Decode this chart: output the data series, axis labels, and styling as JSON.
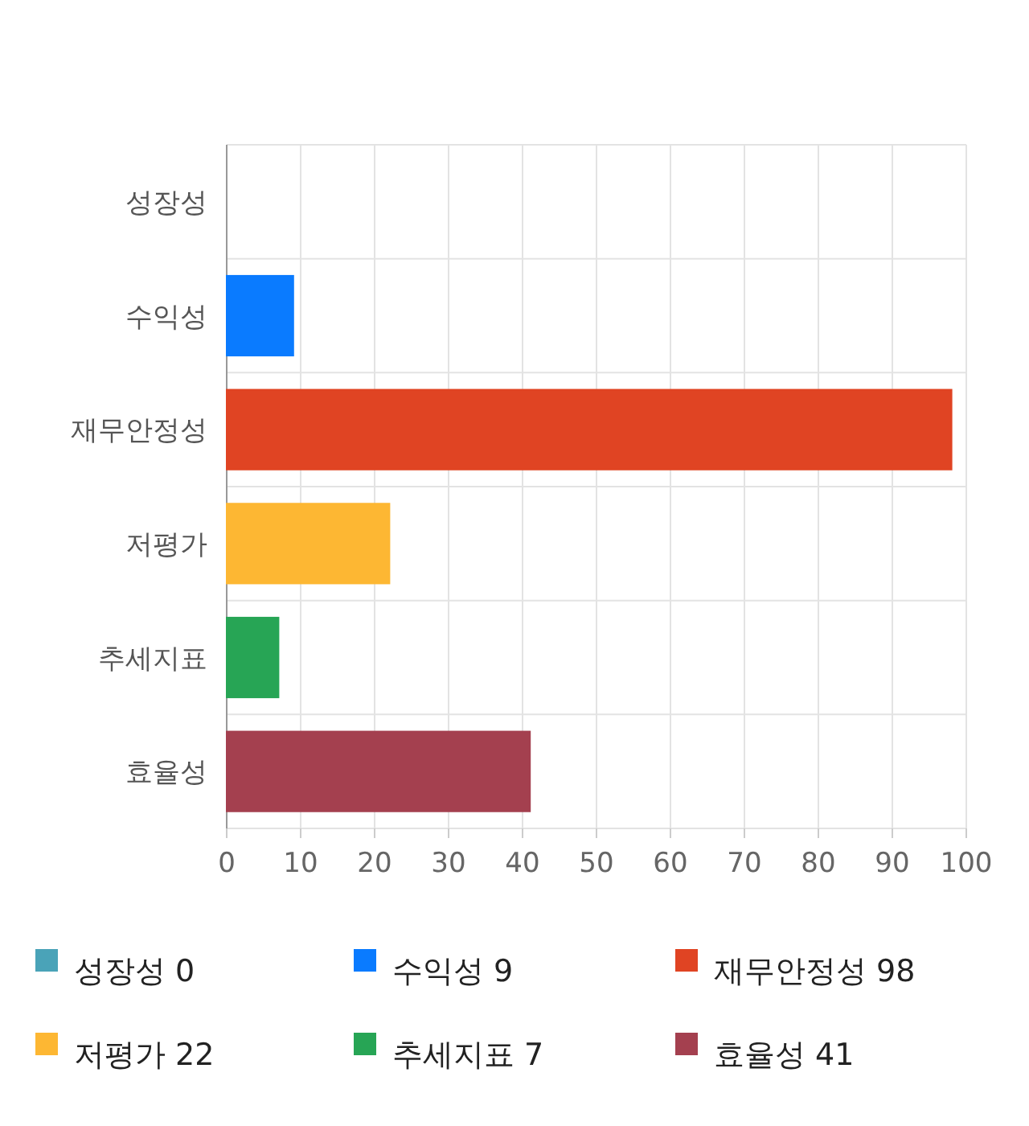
{
  "chart_data": {
    "type": "bar",
    "orientation": "horizontal",
    "stacked": true,
    "categories": [
      "성장성",
      "수익성",
      "재무안정성",
      "저평가",
      "추세지표",
      "효율성"
    ],
    "series": [
      {
        "name": "성장성 0",
        "color": "#4aa3b8",
        "values": [
          0,
          null,
          null,
          null,
          null,
          null
        ]
      },
      {
        "name": "수익성 9",
        "color": "#0a7bff",
        "values": [
          null,
          9,
          null,
          null,
          null,
          null
        ]
      },
      {
        "name": "재무안정성 98",
        "color": "#e04423",
        "values": [
          null,
          null,
          98,
          null,
          null,
          null
        ]
      },
      {
        "name": "저평가 22",
        "color": "#fdb733",
        "values": [
          null,
          null,
          null,
          22,
          null,
          null
        ]
      },
      {
        "name": "추세지표 7",
        "color": "#27a555",
        "values": [
          null,
          null,
          null,
          null,
          7,
          null
        ]
      },
      {
        "name": "효율성 41",
        "color": "#a4404f",
        "values": [
          null,
          null,
          null,
          null,
          null,
          41
        ]
      }
    ],
    "xlim": [
      0,
      100
    ],
    "xticks": [
      0,
      10,
      20,
      30,
      40,
      50,
      60,
      70,
      80,
      90,
      100
    ],
    "grid": true,
    "legend": "bottom"
  }
}
